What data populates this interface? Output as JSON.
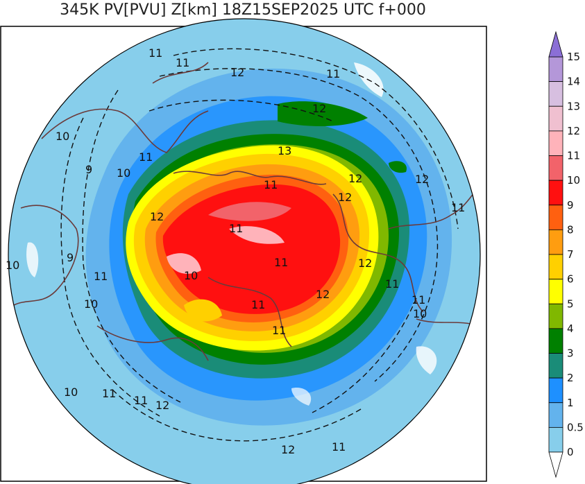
{
  "title": "345K PV[PVU] Z[km] 18Z15SEP2025 UTC f+000",
  "colorbar": {
    "levels": [
      {
        "label": "15",
        "color": "#8b6fd6"
      },
      {
        "label": "14",
        "color": "#b497d9"
      },
      {
        "label": "13",
        "color": "#d7bfe0"
      },
      {
        "label": "12",
        "color": "#f0c0d0"
      },
      {
        "label": "11",
        "color": "#ffb3ba"
      },
      {
        "label": "10",
        "color": "#f2636a"
      },
      {
        "label": "9",
        "color": "#ff1010"
      },
      {
        "label": "8",
        "color": "#ff6010"
      },
      {
        "label": "7",
        "color": "#ff9d10"
      },
      {
        "label": "6",
        "color": "#ffd000"
      },
      {
        "label": "5",
        "color": "#ffff00"
      },
      {
        "label": "4",
        "color": "#80b800"
      },
      {
        "label": "3",
        "color": "#008000"
      },
      {
        "label": "2",
        "color": "#1a8c78"
      },
      {
        "label": "1",
        "color": "#1e90ff"
      },
      {
        "label": "0.5",
        "color": "#63b3ed"
      },
      {
        "label": "0",
        "color": "#87ceeb"
      }
    ]
  },
  "contour_labels": [
    "11",
    "11",
    "12",
    "11",
    "12",
    "10",
    "11",
    "9",
    "10",
    "13",
    "12",
    "12",
    "11",
    "12",
    "12",
    "11",
    "11",
    "10",
    "9",
    "11",
    "10",
    "10",
    "11",
    "11",
    "12",
    "11",
    "12",
    "11",
    "11",
    "10",
    "10",
    "11",
    "11",
    "12",
    "12",
    "11"
  ]
}
